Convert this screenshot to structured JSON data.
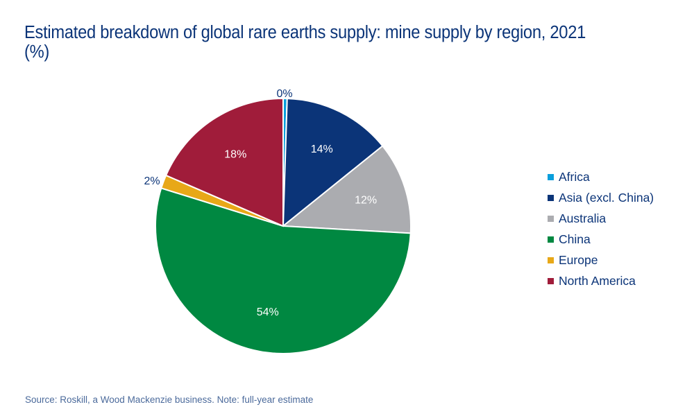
{
  "title": "Estimated breakdown of global rare earths supply: mine supply by region, 2021 (%)",
  "source": "Source: Roskill, a Wood Mackenzie business. Note: full-year estimate",
  "legend": [
    {
      "label": "Africa",
      "color": "#0a9fdc"
    },
    {
      "label": "Asia (excl. China)",
      "color": "#0b3478"
    },
    {
      "label": "Australia",
      "color": "#abacb0"
    },
    {
      "label": "China",
      "color": "#008841"
    },
    {
      "label": "Europe",
      "color": "#e8a818"
    },
    {
      "label": "North America",
      "color": "#a01c3a"
    }
  ],
  "chart_data": {
    "type": "pie",
    "title": "Estimated breakdown of global rare earths supply: mine supply by region, 2021 (%)",
    "categories": [
      "Africa",
      "Asia (excl. China)",
      "Australia",
      "China",
      "Europe",
      "North America"
    ],
    "values": [
      0.5,
      13.7,
      11.7,
      53.9,
      1.7,
      18.5
    ],
    "labels": [
      "0%",
      "14%",
      "12%",
      "54%",
      "2%",
      "18%"
    ],
    "colors": [
      "#0a9fdc",
      "#0b3478",
      "#abacb0",
      "#008841",
      "#e8a818",
      "#a01c3a"
    ],
    "start_angle_deg": 0,
    "direction": "clockwise",
    "legend_position": "right",
    "source": "Source: Roskill, a Wood Mackenzie business. Note: full-year estimate"
  }
}
